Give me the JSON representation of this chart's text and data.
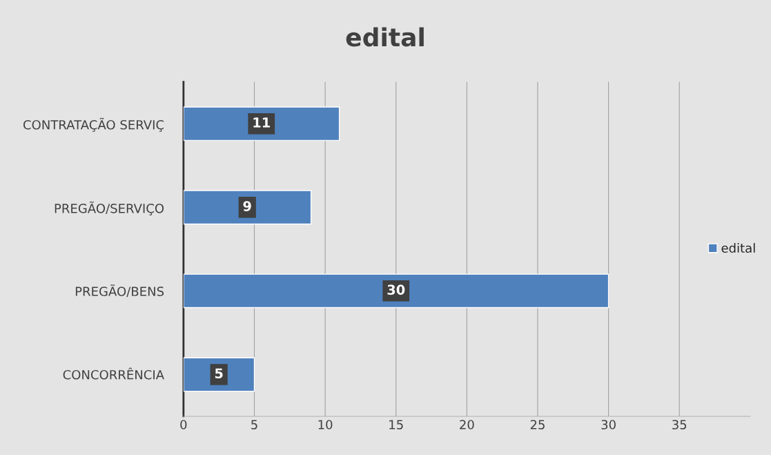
{
  "chart_data": {
    "type": "bar",
    "orientation": "horizontal",
    "title": "edital",
    "categories": [
      "CONTRATAÇÃO SERVIÇ",
      "PREGÃO/SERVIÇO",
      "PREGÃO/BENS",
      "CONCORRÊNCIA"
    ],
    "series": [
      {
        "name": "edital",
        "color": "#4f81bd",
        "values": [
          11,
          9,
          30,
          5
        ]
      }
    ],
    "xlim": [
      0,
      40
    ],
    "xticks": [
      0,
      5,
      10,
      15,
      20,
      25,
      30,
      35
    ],
    "grid": "x",
    "legend": "right",
    "data_labels": true
  }
}
